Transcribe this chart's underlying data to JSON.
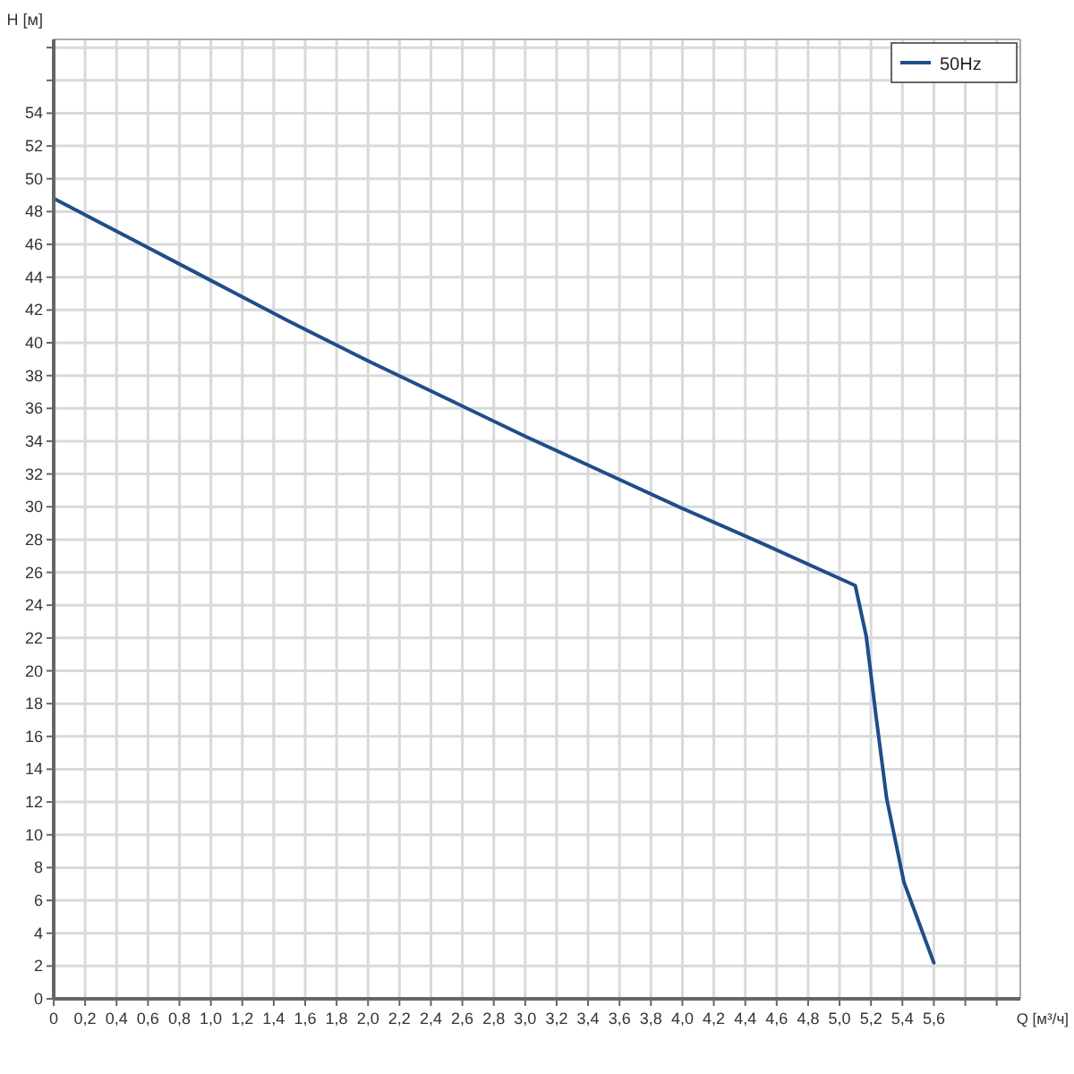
{
  "chart_data": {
    "type": "line",
    "xlabel": "Q [м³/ч]",
    "ylabel": "H [м]",
    "xlim": [
      0,
      6.15
    ],
    "ylim": [
      0,
      58.5
    ],
    "xticks": [
      0,
      {
        "value": 0.2,
        "label": "0,2"
      },
      {
        "value": 0.4,
        "label": "0,4"
      },
      {
        "value": 0.6,
        "label": "0,6"
      },
      {
        "value": 0.8,
        "label": "0,8"
      },
      {
        "value": 1.0,
        "label": "1,0"
      },
      {
        "value": 1.2,
        "label": "1,2"
      },
      {
        "value": 1.4,
        "label": "1,4"
      },
      {
        "value": 1.6,
        "label": "1,6"
      },
      {
        "value": 1.8,
        "label": "1,8"
      },
      {
        "value": 2.0,
        "label": "2,0"
      },
      {
        "value": 2.2,
        "label": "2,2"
      },
      {
        "value": 2.4,
        "label": "2,4"
      },
      {
        "value": 2.6,
        "label": "2,6"
      },
      {
        "value": 2.8,
        "label": "2,8"
      },
      {
        "value": 3.0,
        "label": "3,0"
      },
      {
        "value": 3.2,
        "label": "3,2"
      },
      {
        "value": 3.4,
        "label": "3,4"
      },
      {
        "value": 3.6,
        "label": "3,6"
      },
      {
        "value": 3.8,
        "label": "3,8"
      },
      {
        "value": 4.0,
        "label": "4,0"
      },
      {
        "value": 4.2,
        "label": "4,2"
      },
      {
        "value": 4.4,
        "label": "4,4"
      },
      {
        "value": 4.6,
        "label": "4,6"
      },
      {
        "value": 4.8,
        "label": "4,8"
      },
      {
        "value": 5.0,
        "label": "5,0"
      },
      {
        "value": 5.2,
        "label": "5,2"
      },
      {
        "value": 5.4,
        "label": "5,4"
      },
      {
        "value": 5.6,
        "label": "5,6"
      },
      {
        "value": 5.8,
        "label": null
      },
      {
        "value": 6.0,
        "label": null
      }
    ],
    "yticks": [
      0,
      2,
      4,
      6,
      8,
      10,
      12,
      14,
      16,
      18,
      20,
      22,
      24,
      26,
      28,
      30,
      32,
      34,
      36,
      38,
      40,
      42,
      44,
      46,
      48,
      50,
      52,
      54,
      {
        "value": 56,
        "label": null
      },
      {
        "value": 58,
        "label": null
      }
    ],
    "grid": true,
    "legend": "top right",
    "marker": "none",
    "line_style": "solid",
    "series": [
      {
        "name": "50Hz",
        "color": "#1f4e89",
        "x": [
          0,
          0.5,
          1.0,
          1.5,
          2.0,
          2.5,
          3.0,
          3.5,
          4.0,
          4.5,
          5.1,
          5.17,
          5.23,
          5.3,
          5.41,
          5.6
        ],
        "values": [
          48.8,
          46.3,
          43.8,
          41.3,
          38.9,
          36.6,
          34.3,
          32.1,
          29.9,
          27.8,
          25.2,
          22.1,
          17.4,
          12.2,
          7.1,
          2.2
        ]
      }
    ]
  }
}
